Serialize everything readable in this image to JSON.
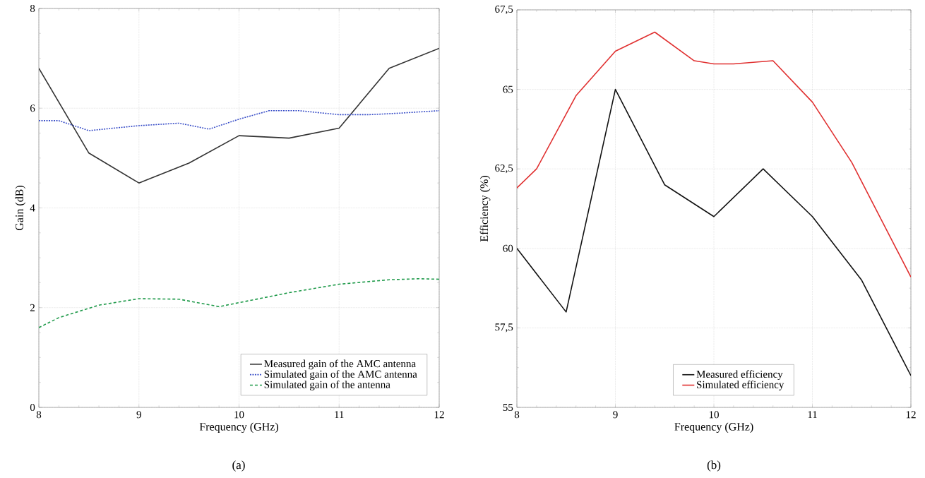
{
  "chart_data": [
    {
      "type": "line",
      "xlabel": "Frequency (GHz)",
      "ylabel": "Gain (dB)",
      "xlim": [
        8,
        12
      ],
      "ylim": [
        0,
        8
      ],
      "xticks": [
        8,
        9,
        10,
        11,
        12
      ],
      "yticks": [
        0,
        2,
        4,
        6,
        8
      ],
      "grid": true,
      "legend": "bottom right",
      "annotations": [
        "(a)"
      ],
      "series": [
        {
          "name": "Measured gain of the AMC antenna",
          "color": "#333333",
          "line_style": "solid",
          "x": [
            8,
            8.5,
            9,
            9.5,
            10,
            10.5,
            11,
            11.5,
            12
          ],
          "values": [
            6.8,
            5.1,
            4.5,
            4.9,
            5.45,
            5.4,
            5.6,
            6.8,
            7.2
          ]
        },
        {
          "name": "Simulated gain of the AMC antenna",
          "color": "#3a4fc8",
          "line_style": "dotted",
          "x": [
            8,
            8.2,
            8.5,
            9,
            9.4,
            9.7,
            10,
            10.3,
            10.6,
            11,
            11.3,
            11.6,
            12
          ],
          "values": [
            5.75,
            5.75,
            5.55,
            5.65,
            5.7,
            5.58,
            5.78,
            5.95,
            5.95,
            5.87,
            5.87,
            5.9,
            5.95
          ]
        },
        {
          "name": "Simulated gain of the antenna",
          "color": "#1f9a4a",
          "line_style": "dashed",
          "x": [
            8,
            8.2,
            8.6,
            9,
            9.4,
            9.8,
            10,
            10.5,
            11,
            11.5,
            11.8,
            12
          ],
          "values": [
            1.6,
            1.8,
            2.05,
            2.18,
            2.17,
            2.02,
            2.1,
            2.3,
            2.47,
            2.56,
            2.58,
            2.57
          ]
        }
      ]
    },
    {
      "type": "line",
      "xlabel": "Frequency (GHz)",
      "ylabel": "Efficiency (%)",
      "xlim": [
        8,
        12
      ],
      "ylim": [
        55,
        67.5
      ],
      "xticks": [
        8,
        9,
        10,
        11,
        12
      ],
      "yticks": [
        55,
        {
          "value": 57.5,
          "label": "57,5"
        },
        60,
        {
          "value": 62.5,
          "label": "62,5"
        },
        65,
        {
          "value": 67.5,
          "label": "67,5"
        }
      ],
      "grid": true,
      "legend": "bottom",
      "annotations": [
        "(b)"
      ],
      "series": [
        {
          "name": "Measured efficiency",
          "color": "#111111",
          "line_style": "solid",
          "x": [
            8,
            8.5,
            9,
            9.5,
            10,
            10.5,
            11,
            11.5,
            12
          ],
          "values": [
            60,
            58,
            65,
            62,
            61,
            62.5,
            61,
            59,
            56
          ]
        },
        {
          "name": "Simulated efficiency",
          "color": "#e03030",
          "line_style": "solid",
          "x": [
            8,
            8.2,
            8.6,
            9,
            9.4,
            9.8,
            10,
            10.2,
            10.6,
            11,
            11.4,
            12
          ],
          "values": [
            61.9,
            62.5,
            64.8,
            66.2,
            66.8,
            65.9,
            65.8,
            65.8,
            65.9,
            64.6,
            62.7,
            59.1
          ]
        }
      ]
    }
  ]
}
